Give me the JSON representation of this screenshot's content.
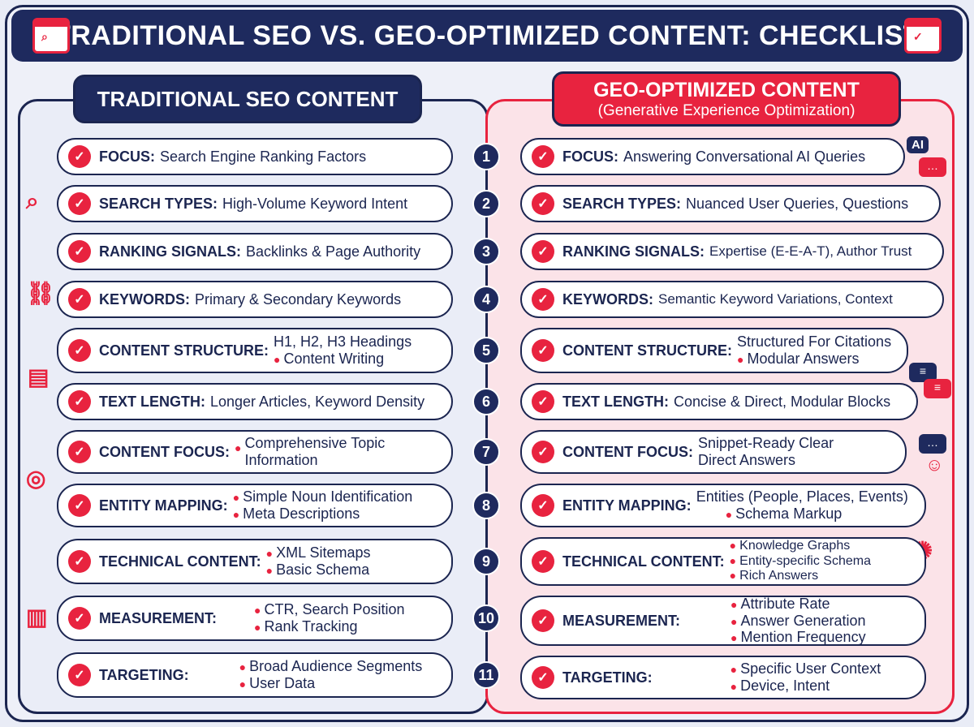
{
  "header": {
    "title": "TRADITIONAL SEO VS. GEO-OPTIMIZED CONTENT: CHECKLIST",
    "left_icon": "browser-search-icon",
    "right_icon": "browser-check-icon"
  },
  "colors": {
    "navy": "#1e2a5e",
    "red": "#e8233f",
    "pink": "#fbe3e8"
  },
  "left": {
    "title": "TRADITIONAL SEO CONTENT",
    "rows": [
      {
        "label": "FOCUS:",
        "value": "Search Engine Ranking Factors"
      },
      {
        "label": "SEARCH TYPES:",
        "value": "High-Volume Keyword Intent"
      },
      {
        "label": "RANKING SIGNALS:",
        "value": "Backlinks & Page Authority"
      },
      {
        "label": "KEYWORDS:",
        "value": "Primary & Secondary Keywords"
      },
      {
        "label": "CONTENT STRUCTURE:",
        "line1": "H1, H2, H3 Headings",
        "line2": "Content Writing"
      },
      {
        "label": "TEXT LENGTH:",
        "value": "Longer Articles, Keyword Density"
      },
      {
        "label": "CONTENT FOCUS:",
        "line1": "Comprehensive Topic",
        "line2": "Information"
      },
      {
        "label": "ENTITY MAPPING:",
        "line1": "Simple Noun Identification",
        "line2": "Meta Descriptions"
      },
      {
        "label": "TECHNICAL CONTENT:",
        "line1": "XML Sitemaps",
        "line2": "Basic Schema"
      },
      {
        "label": "MEASUREMENT:",
        "line1": "CTR, Search Position",
        "line2": "Rank Tracking"
      },
      {
        "label": "TARGETING:",
        "line1": "Broad Audience Segments",
        "line2": "User Data"
      }
    ]
  },
  "right": {
    "title": "GEO-OPTIMIZED CONTENT",
    "subtitle": "(Generative Experience Optimization)",
    "ai_badge": "AI",
    "rows": [
      {
        "label": "FOCUS:",
        "value": "Answering Conversational AI Queries"
      },
      {
        "label": "SEARCH TYPES:",
        "value": "Nuanced User Queries, Questions"
      },
      {
        "label": "RANKING SIGNALS:",
        "value": "Expertise (E-E-A-T), Author Trust"
      },
      {
        "label": "KEYWORDS:",
        "value": "Semantic Keyword Variations, Context"
      },
      {
        "label": "CONTENT STRUCTURE:",
        "line1": "Structured For Citations",
        "line2": "Modular Answers"
      },
      {
        "label": "TEXT LENGTH:",
        "value": "Concise & Direct, Modular Blocks"
      },
      {
        "label": "CONTENT FOCUS:",
        "line1": "Snippet-Ready Clear",
        "line2": "Direct Answers"
      },
      {
        "label": "ENTITY MAPPING:",
        "line1": "Entities (People, Places, Events)",
        "line2": "Schema Markup"
      },
      {
        "label": "TECHNICAL CONTENT:",
        "line1": "Knowledge Graphs",
        "line2": "Entity-specific Schema",
        "line3": "Rich Answers"
      },
      {
        "label": "MEASUREMENT:",
        "line1": "Attribute Rate",
        "line2": "Answer Generation",
        "line3": "Mention Frequency"
      },
      {
        "label": "TARGETING:",
        "line1": "Specific User Context",
        "line2": "Device, Intent"
      }
    ]
  },
  "numbers": [
    "1",
    "2",
    "3",
    "4",
    "5",
    "6",
    "7",
    "8",
    "9",
    "10",
    "11"
  ]
}
